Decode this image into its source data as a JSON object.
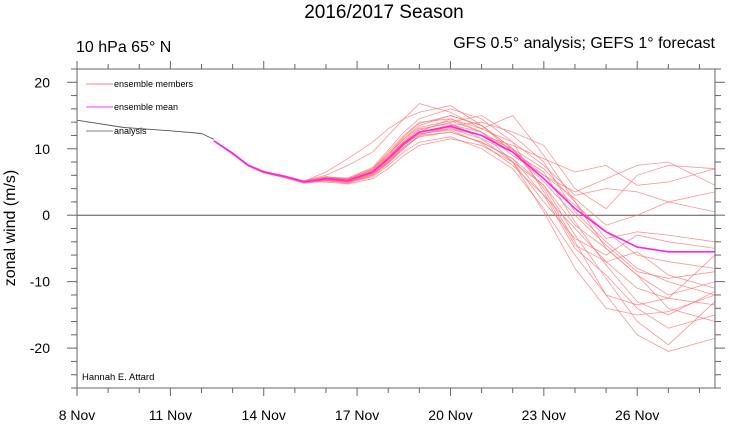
{
  "chart_data": {
    "type": "line",
    "title": "2016/2017 Season",
    "subtitle_left": "10 hPa 65° N",
    "subtitle_right": "GFS 0.5° analysis; GEFS 1° forecast",
    "xlabel": "",
    "ylabel": "zonal wind (m/s)",
    "credit": "Hannah E. Attard",
    "x_unit": "days since 8 Nov",
    "xlim": [
      0,
      20.5
    ],
    "ylim": [
      -26,
      22
    ],
    "x_ticks": [
      {
        "value": 0,
        "label": "8 Nov"
      },
      {
        "value": 3,
        "label": "11 Nov"
      },
      {
        "value": 6,
        "label": "14 Nov"
      },
      {
        "value": 9,
        "label": "17 Nov"
      },
      {
        "value": 12,
        "label": "20 Nov"
      },
      {
        "value": 15,
        "label": "23 Nov"
      },
      {
        "value": 18,
        "label": "26 Nov"
      }
    ],
    "y_ticks": [
      {
        "value": 20,
        "label": "20"
      },
      {
        "value": 10,
        "label": "10"
      },
      {
        "value": 0,
        "label": "0"
      },
      {
        "value": -10,
        "label": "-10"
      },
      {
        "value": -20,
        "label": "-20"
      }
    ],
    "zero_line": true,
    "legend": {
      "placement": "top-left",
      "entries": [
        {
          "label": "ensemble members",
          "color": "#ff8080"
        },
        {
          "label": "ensemble mean",
          "color": "#ff33ff"
        },
        {
          "label": "analysis",
          "color": "#808080"
        }
      ]
    },
    "series": [
      {
        "name": "analysis",
        "color": "#555555",
        "x": [
          0,
          1.5,
          3,
          4,
          4.4
        ],
        "y": [
          14.3,
          13.2,
          12.7,
          12.3,
          11.4
        ]
      },
      {
        "name": "ensemble mean",
        "color": "#ff22ee",
        "x": [
          4.4,
          5,
          5.5,
          6,
          6.7,
          7.3,
          8,
          8.7,
          9.5,
          10,
          10.5,
          11,
          12,
          13,
          14,
          15,
          16,
          17,
          18,
          19,
          20.5
        ],
        "y": [
          11.2,
          9.3,
          7.5,
          6.5,
          5.8,
          5.0,
          5.5,
          5.2,
          6.5,
          8.5,
          10.8,
          12.5,
          13.4,
          12.0,
          9.5,
          5.5,
          1.0,
          -2.5,
          -4.8,
          -5.5,
          -5.5
        ]
      }
    ],
    "ensemble_members": {
      "name": "ensemble members",
      "color": "#ff7070",
      "x": [
        4.4,
        5,
        5.5,
        6,
        6.7,
        7.3,
        8,
        8.7,
        9.5,
        10,
        10.5,
        11,
        12,
        13,
        14,
        15,
        16,
        17,
        18,
        19,
        20.5
      ],
      "members": [
        [
          11.2,
          9.3,
          7.4,
          6.5,
          5.9,
          5.2,
          6.0,
          7.5,
          9.5,
          12.0,
          14.5,
          16.8,
          15.5,
          13.0,
          15.0,
          9.0,
          2.0,
          -5.0,
          -9.0,
          -12.0,
          -10.0
        ],
        [
          11.2,
          9.2,
          7.5,
          6.4,
          5.6,
          4.8,
          5.2,
          4.8,
          6.0,
          7.8,
          10.0,
          12.0,
          13.5,
          14.0,
          12.5,
          10.5,
          4.0,
          1.0,
          6.0,
          7.5,
          7.0
        ],
        [
          11.2,
          9.4,
          7.6,
          6.6,
          5.7,
          5.1,
          5.8,
          5.5,
          6.8,
          9.0,
          11.5,
          13.5,
          15.0,
          13.5,
          10.0,
          4.0,
          -4.0,
          -12.0,
          -18.0,
          -20.5,
          -18.5
        ],
        [
          11.2,
          9.3,
          7.5,
          6.5,
          5.8,
          5.0,
          5.3,
          5.0,
          6.3,
          8.0,
          10.2,
          12.0,
          12.5,
          11.0,
          8.5,
          3.0,
          -5.0,
          -9.0,
          -14.0,
          -17.0,
          -15.0
        ],
        [
          11.2,
          9.3,
          7.4,
          6.4,
          5.7,
          4.9,
          5.5,
          5.3,
          7.0,
          9.5,
          12.0,
          14.0,
          14.5,
          12.5,
          9.0,
          6.0,
          3.5,
          5.5,
          7.5,
          8.0,
          4.5
        ],
        [
          11.2,
          9.2,
          7.5,
          6.5,
          5.8,
          5.0,
          5.0,
          4.7,
          5.5,
          7.0,
          9.0,
          10.5,
          11.5,
          10.5,
          8.0,
          2.0,
          -3.5,
          -6.0,
          -3.0,
          -4.0,
          -5.0
        ],
        [
          11.2,
          9.4,
          7.6,
          6.6,
          5.9,
          5.1,
          5.6,
          5.4,
          6.6,
          8.7,
          11.0,
          12.8,
          14.0,
          15.0,
          12.0,
          8.0,
          0.5,
          -4.0,
          -8.0,
          -10.0,
          -12.0
        ],
        [
          11.2,
          9.3,
          7.5,
          6.5,
          5.8,
          5.0,
          5.5,
          5.1,
          6.2,
          8.2,
          10.5,
          12.2,
          13.0,
          11.5,
          9.5,
          6.5,
          -1.0,
          -7.5,
          -13.0,
          -15.0,
          -11.5
        ],
        [
          11.2,
          9.3,
          7.5,
          6.6,
          5.8,
          5.1,
          5.7,
          5.6,
          7.2,
          9.8,
          12.5,
          14.5,
          16.0,
          14.5,
          11.0,
          3.5,
          -4.5,
          -7.0,
          -5.5,
          -9.0,
          -11.0
        ],
        [
          11.2,
          9.2,
          7.4,
          6.4,
          5.7,
          4.9,
          5.2,
          4.9,
          5.8,
          7.5,
          9.5,
          11.0,
          11.8,
          10.0,
          7.0,
          1.0,
          -6.0,
          -12.0,
          -13.5,
          -12.5,
          -6.0
        ],
        [
          11.2,
          9.3,
          7.5,
          6.5,
          5.8,
          5.0,
          5.4,
          5.2,
          6.4,
          8.4,
          10.7,
          12.4,
          13.6,
          12.5,
          9.8,
          6.0,
          2.5,
          -1.5,
          0.0,
          2.0,
          0.5
        ],
        [
          11.2,
          9.3,
          7.5,
          6.5,
          5.8,
          5.0,
          5.6,
          5.3,
          6.7,
          8.8,
          11.2,
          13.0,
          13.8,
          11.5,
          8.0,
          4.5,
          -3.0,
          -9.5,
          -16.0,
          -19.5,
          -13.0
        ],
        [
          11.2,
          9.4,
          7.6,
          6.6,
          5.9,
          5.0,
          5.5,
          5.0,
          6.0,
          8.0,
          10.5,
          12.5,
          14.5,
          13.0,
          11.0,
          7.5,
          3.0,
          4.0,
          3.5,
          2.0,
          3.5
        ],
        [
          11.2,
          9.3,
          7.5,
          6.5,
          5.8,
          5.1,
          5.8,
          5.4,
          6.9,
          9.2,
          11.8,
          13.8,
          15.0,
          13.5,
          9.5,
          5.0,
          0.0,
          -4.5,
          -8.5,
          -9.5,
          -8.5
        ],
        [
          11.2,
          9.2,
          7.4,
          6.4,
          5.7,
          4.9,
          5.3,
          5.0,
          6.1,
          7.9,
          10.2,
          11.8,
          12.5,
          11.0,
          8.5,
          4.5,
          -1.5,
          -5.0,
          -9.0,
          -14.0,
          -16.0
        ],
        [
          11.2,
          9.3,
          7.5,
          6.5,
          5.8,
          5.0,
          5.5,
          5.3,
          6.5,
          8.6,
          10.9,
          12.6,
          13.2,
          12.0,
          10.5,
          8.5,
          6.5,
          7.5,
          4.5,
          5.0,
          7.0
        ],
        [
          11.2,
          9.4,
          7.6,
          6.6,
          5.8,
          5.0,
          5.6,
          5.5,
          7.0,
          9.2,
          11.5,
          13.2,
          14.2,
          12.5,
          8.0,
          0.5,
          -8.0,
          -14.0,
          -15.0,
          -14.5,
          -12.0
        ],
        [
          11.2,
          9.3,
          7.5,
          6.5,
          5.8,
          5.0,
          5.4,
          5.1,
          6.3,
          8.3,
          10.6,
          12.3,
          12.8,
          10.8,
          7.5,
          3.0,
          -2.0,
          -7.0,
          -11.0,
          -12.5,
          -13.5
        ],
        [
          11.2,
          9.3,
          7.5,
          6.5,
          5.8,
          5.1,
          6.5,
          8.5,
          11.0,
          13.0,
          14.5,
          15.5,
          16.5,
          13.5,
          10.0,
          5.5,
          1.5,
          -2.5,
          -6.0,
          -7.0,
          -8.0
        ],
        [
          11.2,
          9.3,
          7.5,
          6.5,
          5.8,
          5.0,
          5.5,
          5.2,
          6.5,
          8.5,
          10.8,
          12.5,
          13.0,
          12.0,
          10.0,
          7.0,
          2.0,
          -3.5,
          -2.5,
          -3.0,
          -4.0
        ]
      ]
    }
  }
}
